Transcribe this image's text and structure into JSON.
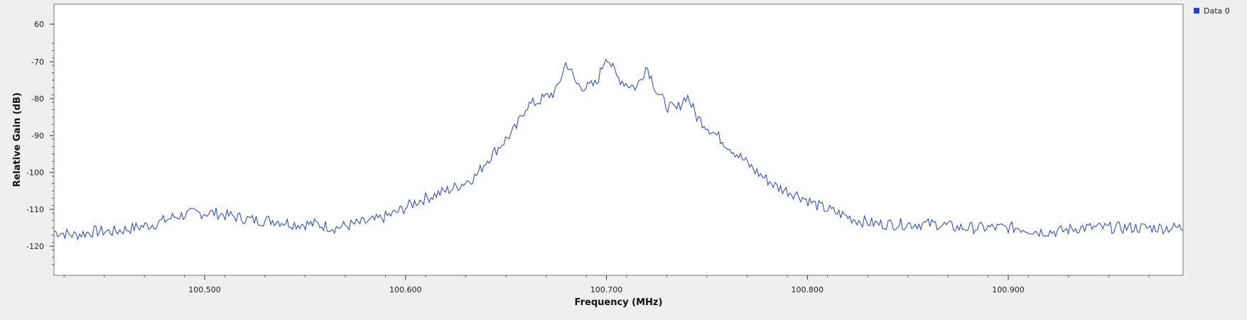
{
  "chart_data": {
    "type": "line",
    "title": "",
    "xlabel": "Frequency (MHz)",
    "ylabel": "Relative Gain (dB)",
    "xlim": [
      100.425,
      100.987
    ],
    "ylim": [
      -128,
      65
    ],
    "grid": false,
    "legend_position": "top-right",
    "x_ticks": [
      {
        "value": 100.5,
        "label": "100.500"
      },
      {
        "value": 100.6,
        "label": "100.600"
      },
      {
        "value": 100.7,
        "label": "100.700"
      },
      {
        "value": 100.8,
        "label": "100.800"
      },
      {
        "value": 100.9,
        "label": "100.900"
      }
    ],
    "y_ticks": [
      {
        "value": 60,
        "label": "60"
      },
      {
        "value": -70,
        "label": "-70"
      },
      {
        "value": -80,
        "label": "-80"
      },
      {
        "value": -90,
        "label": "-90"
      },
      {
        "value": -100,
        "label": "-100"
      },
      {
        "value": -110,
        "label": "-110"
      },
      {
        "value": -120,
        "label": "-120"
      }
    ],
    "series": [
      {
        "name": "Data 0",
        "color": "#1f3fe0",
        "x": [
          100.425,
          100.435,
          100.445,
          100.455,
          100.465,
          100.475,
          100.485,
          100.495,
          100.505,
          100.515,
          100.525,
          100.535,
          100.545,
          100.555,
          100.565,
          100.575,
          100.585,
          100.595,
          100.605,
          100.615,
          100.625,
          100.635,
          100.64,
          100.645,
          100.655,
          100.66,
          100.665,
          100.675,
          100.68,
          100.685,
          100.69,
          100.695,
          100.7,
          100.705,
          100.71,
          100.715,
          100.72,
          100.725,
          100.73,
          100.735,
          100.74,
          100.745,
          100.755,
          100.765,
          100.775,
          100.785,
          100.795,
          100.805,
          100.815,
          100.825,
          100.835,
          100.845,
          100.855,
          100.865,
          100.875,
          100.885,
          100.895,
          100.905,
          100.915,
          100.925,
          100.935,
          100.945,
          100.955,
          100.965,
          100.975,
          100.987
        ],
        "y": [
          -116,
          -117,
          -116,
          -116,
          -115,
          -114,
          -112,
          -111,
          -111,
          -112,
          -113,
          -113,
          -114,
          -114,
          -115,
          -114,
          -113,
          -111,
          -108,
          -106,
          -104,
          -101,
          -97,
          -94,
          -88,
          -82,
          -81,
          -78,
          -70,
          -76,
          -77,
          -76,
          -68,
          -74,
          -76,
          -77,
          -71,
          -78,
          -82,
          -83,
          -79,
          -85,
          -90,
          -95,
          -100,
          -104,
          -106,
          -109,
          -111,
          -113,
          -114,
          -114,
          -114,
          -114,
          -115,
          -115,
          -115,
          -115,
          -116,
          -116,
          -115,
          -115,
          -115,
          -115,
          -115,
          -115
        ]
      }
    ]
  }
}
